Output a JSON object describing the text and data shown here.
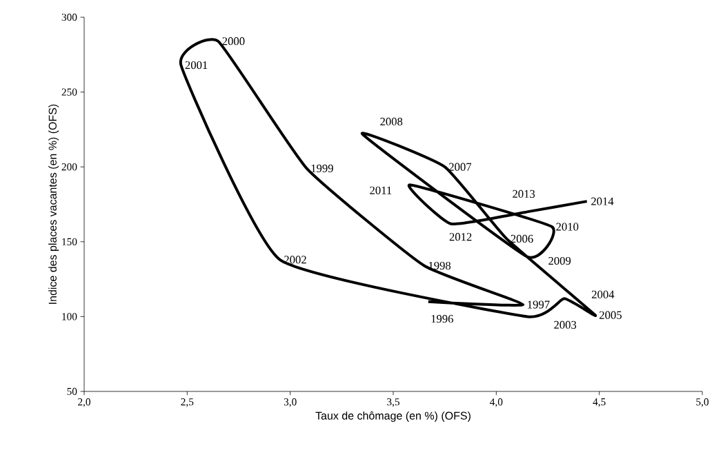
{
  "chart_data": {
    "type": "line",
    "xlabel": "Taux de chômage (en %) (OFS)",
    "ylabel": "Indice des places vacantes (en %) (OFS)",
    "x": [
      3.67,
      4.13,
      3.65,
      3.08,
      2.65,
      2.47,
      2.95,
      4.15,
      4.33,
      4.48,
      4.05,
      3.75,
      3.35,
      4.15,
      4.27,
      3.58,
      3.78,
      4.15,
      4.44
    ],
    "series": [
      {
        "color": "#000000",
        "values": [
          110,
          108,
          134,
          199,
          284,
          268,
          138,
          100,
          112,
          101,
          152,
          200,
          222,
          140,
          160,
          188,
          162,
          170,
          177
        ]
      }
    ],
    "marker": "none",
    "line_style": "solid",
    "grid": false,
    "legend": false,
    "xlim": [
      2,
      5
    ],
    "ylim": [
      50,
      300
    ],
    "xticks": [
      {
        "value": 2,
        "label": "2,0"
      },
      {
        "value": 2.5,
        "label": "2,5"
      },
      {
        "value": 3,
        "label": "3,0"
      },
      {
        "value": 3.5,
        "label": "3,5"
      },
      {
        "value": 4,
        "label": "4,0"
      },
      {
        "value": 4.5,
        "label": "4,5"
      },
      {
        "value": 5,
        "label": "5,0"
      }
    ],
    "yticks": [
      50,
      100,
      150,
      200,
      250,
      300
    ],
    "annotations": [
      {
        "text": "1996",
        "x": 3.67,
        "y": 110
      },
      {
        "text": "1997",
        "x": 4.13,
        "y": 108
      },
      {
        "text": "1998",
        "x": 3.65,
        "y": 134
      },
      {
        "text": "1999",
        "x": 3.08,
        "y": 199
      },
      {
        "text": "2000",
        "x": 2.65,
        "y": 284
      },
      {
        "text": "2001",
        "x": 2.47,
        "y": 268
      },
      {
        "text": "2002",
        "x": 2.95,
        "y": 138
      },
      {
        "text": "2003",
        "x": 4.15,
        "y": 100
      },
      {
        "text": "2004",
        "x": 4.33,
        "y": 112
      },
      {
        "text": "2005",
        "x": 4.48,
        "y": 101
      },
      {
        "text": "2006",
        "x": 4.05,
        "y": 152
      },
      {
        "text": "2007",
        "x": 3.75,
        "y": 200
      },
      {
        "text": "2008",
        "x": 3.35,
        "y": 222
      },
      {
        "text": "2009",
        "x": 4.15,
        "y": 140
      },
      {
        "text": "2010",
        "x": 4.27,
        "y": 160
      },
      {
        "text": "2011",
        "x": 3.58,
        "y": 188
      },
      {
        "text": "2012",
        "x": 3.78,
        "y": 162
      },
      {
        "text": "2013",
        "x": 4.15,
        "y": 170
      },
      {
        "text": "2014",
        "x": 4.44,
        "y": 177
      }
    ]
  }
}
